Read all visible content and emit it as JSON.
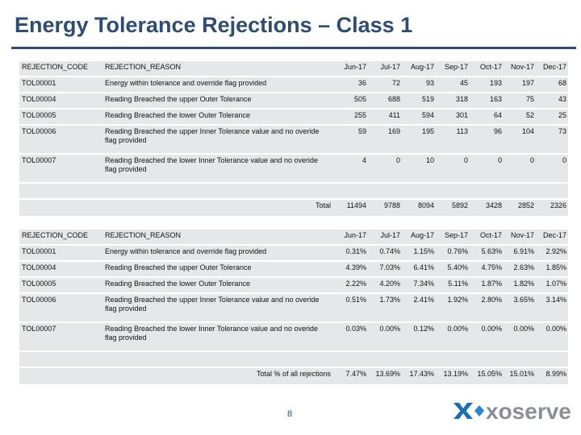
{
  "title": "Energy Tolerance Rejections – Class 1",
  "page_number": "8",
  "logo_text": "xoserve",
  "months": [
    "Jun-17",
    "Jul-17",
    "Aug-17",
    "Sep-17",
    "Oct-17",
    "Nov-17",
    "Dec-17"
  ],
  "counts_table": {
    "header": {
      "code": "REJECTION_CODE",
      "reason": "REJECTION_REASON"
    },
    "rows": [
      {
        "code": "TOL00001",
        "reason": "Energy within tolerance and override flag provided",
        "values": [
          "36",
          "72",
          "93",
          "45",
          "193",
          "197",
          "68"
        ]
      },
      {
        "code": "TOL00004",
        "reason": "Reading Breached the upper Outer Tolerance",
        "values": [
          "505",
          "688",
          "519",
          "318",
          "163",
          "75",
          "43"
        ]
      },
      {
        "code": "TOL00005",
        "reason": "Reading Breached the lower Outer Tolerance",
        "values": [
          "255",
          "411",
          "594",
          "301",
          "64",
          "52",
          "25"
        ]
      },
      {
        "code": "TOL00006",
        "reason": "Reading Breached the upper Inner Tolerance value and no overide flag provided",
        "values": [
          "59",
          "169",
          "195",
          "113",
          "96",
          "104",
          "73"
        ]
      },
      {
        "code": "TOL00007",
        "reason": "Reading Breached the lower Inner Tolerance value and no overide flag provided",
        "values": [
          "4",
          "0",
          "10",
          "0",
          "0",
          "0",
          "0"
        ]
      }
    ],
    "total_label": "Total",
    "totals": [
      "11494",
      "9788",
      "8094",
      "5892",
      "3428",
      "2852",
      "2326"
    ]
  },
  "percent_table": {
    "header": {
      "code": "REJECTION_CODE",
      "reason": "REJECTION_REASON"
    },
    "rows": [
      {
        "code": "TOL00001",
        "reason": "Energy within tolerance and override flag provided",
        "values": [
          "0.31%",
          "0.74%",
          "1.15%",
          "0.76%",
          "5.63%",
          "6.91%",
          "2.92%"
        ]
      },
      {
        "code": "TOL00004",
        "reason": "Reading Breached the upper Outer Tolerance",
        "values": [
          "4.39%",
          "7.03%",
          "6.41%",
          "5.40%",
          "4.75%",
          "2.63%",
          "1.85%"
        ]
      },
      {
        "code": "TOL00005",
        "reason": "Reading Breached the lower Outer Tolerance",
        "values": [
          "2.22%",
          "4.20%",
          "7.34%",
          "5.11%",
          "1.87%",
          "1.82%",
          "1.07%"
        ]
      },
      {
        "code": "TOL00006",
        "reason": "Reading Breached the upper Inner Tolerance value and no overide flag provided",
        "values": [
          "0.51%",
          "1.73%",
          "2.41%",
          "1.92%",
          "2.80%",
          "3.65%",
          "3.14%"
        ]
      },
      {
        "code": "TOL00007",
        "reason": "Reading Breached the lower Inner Tolerance value and no overide flag provided",
        "values": [
          "0.03%",
          "0.00%",
          "0.12%",
          "0.00%",
          "0.00%",
          "0.00%",
          "0.00%"
        ]
      }
    ],
    "total_label": "Total % of all rejections",
    "totals": [
      "7.47%",
      "13.69%",
      "17.43%",
      "13.19%",
      "15.05%",
      "15.01%",
      "8.99%"
    ]
  }
}
